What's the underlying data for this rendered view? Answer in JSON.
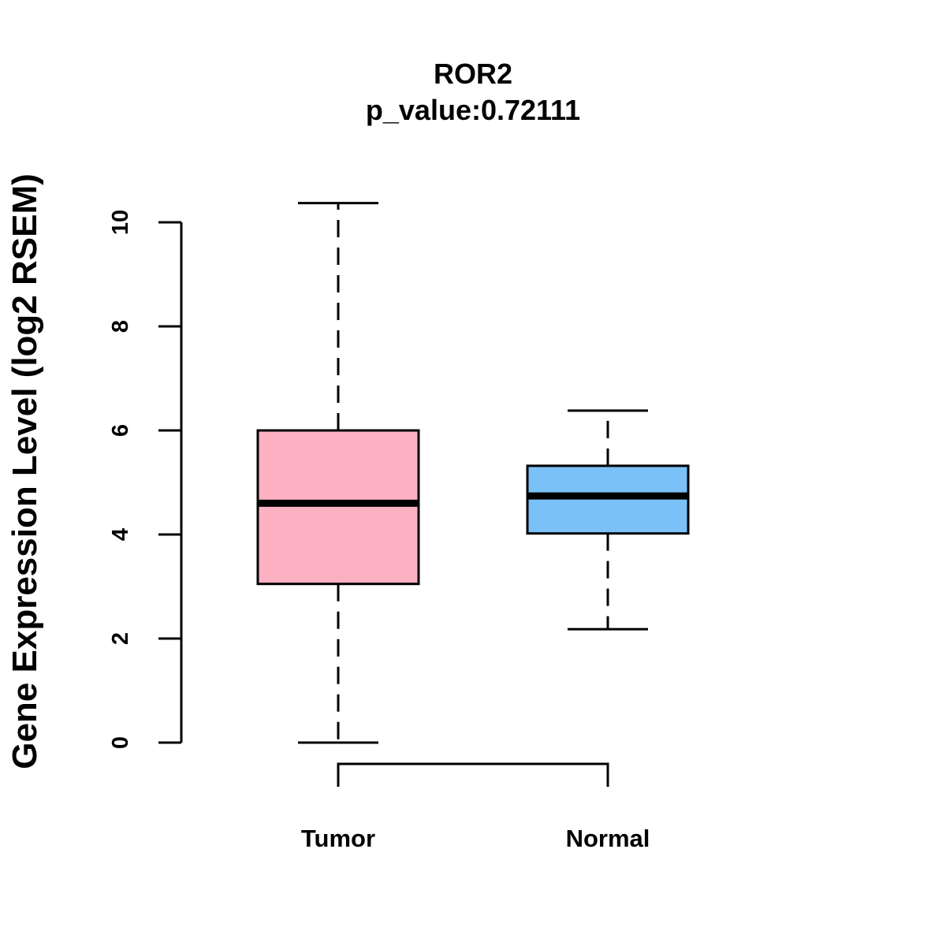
{
  "chart_data": {
    "type": "box",
    "title": "ROR2",
    "subtitle": "p_value:0.72111",
    "ylabel": "Gene Expression Level (log2 RSEM)",
    "xlabel": "",
    "ylim": [
      0,
      10
    ],
    "yticks": [
      "0",
      "2",
      "4",
      "6",
      "8",
      "10"
    ],
    "grid": false,
    "categories": [
      "Tumor",
      "Normal"
    ],
    "boxes": [
      {
        "category": "Tumor",
        "whisker_low": 0.0,
        "q1": 3.05,
        "median": 4.6,
        "q3": 6.0,
        "whisker_high": 10.37,
        "color": "#FBB1C2"
      },
      {
        "category": "Normal",
        "whisker_low": 2.18,
        "q1": 4.02,
        "median": 4.74,
        "q3": 5.32,
        "whisker_high": 6.38,
        "color": "#7AC1F7"
      }
    ],
    "comparison_bracket": [
      "Tumor",
      "Normal"
    ]
  }
}
